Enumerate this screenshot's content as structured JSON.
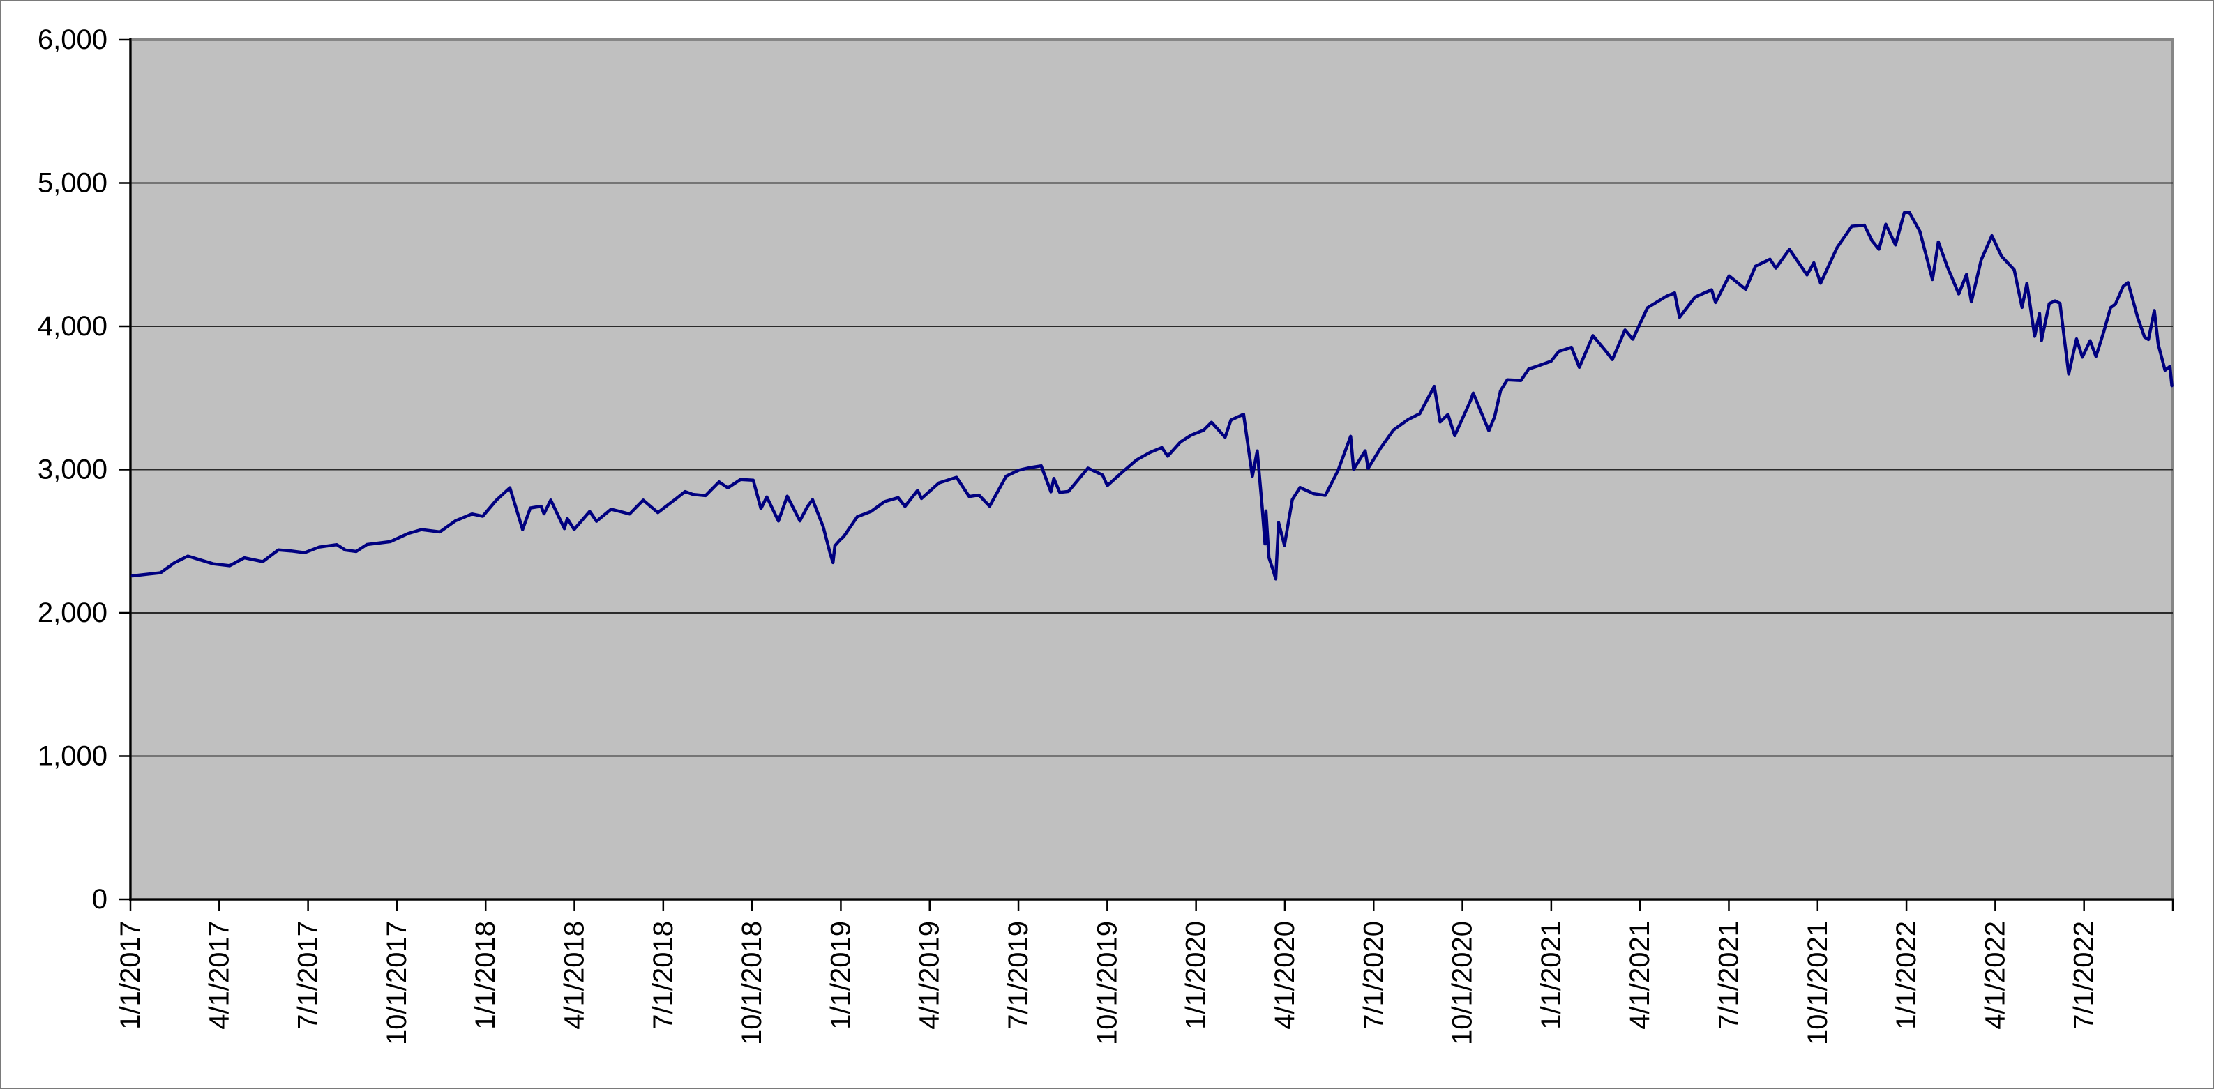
{
  "chart_data": {
    "type": "line",
    "title": "",
    "xlabel": "",
    "ylabel": "",
    "legend": "none",
    "grid": "horizontal",
    "ylim": [
      0,
      6000
    ],
    "y_tick_interval": 1000,
    "y_tick_labels": [
      "0",
      "1,000",
      "2,000",
      "3,000",
      "4,000",
      "5,000",
      "6,000"
    ],
    "x_domain": [
      "2017-01-01",
      "2022-10-01"
    ],
    "x_tick_labels": [
      "1/1/2017",
      "4/1/2017",
      "7/1/2017",
      "10/1/2017",
      "1/1/2018",
      "4/1/2018",
      "7/1/2018",
      "10/1/2018",
      "1/1/2019",
      "4/1/2019",
      "7/1/2019",
      "10/1/2019",
      "1/1/2020",
      "4/1/2020",
      "7/1/2020",
      "10/1/2020",
      "1/1/2021",
      "4/1/2021",
      "7/1/2021",
      "10/1/2021",
      "1/1/2022",
      "4/1/2022",
      "7/1/2022"
    ],
    "series": [
      {
        "color": "#000080",
        "points": [
          [
            "2017-01-03",
            2258
          ],
          [
            "2017-01-20",
            2271
          ],
          [
            "2017-02-01",
            2280
          ],
          [
            "2017-02-15",
            2349
          ],
          [
            "2017-03-01",
            2396
          ],
          [
            "2017-03-27",
            2342
          ],
          [
            "2017-04-13",
            2329
          ],
          [
            "2017-04-28",
            2384
          ],
          [
            "2017-05-17",
            2357
          ],
          [
            "2017-06-02",
            2439
          ],
          [
            "2017-06-15",
            2432
          ],
          [
            "2017-06-29",
            2420
          ],
          [
            "2017-07-14",
            2459
          ],
          [
            "2017-08-01",
            2476
          ],
          [
            "2017-08-10",
            2438
          ],
          [
            "2017-08-21",
            2428
          ],
          [
            "2017-09-01",
            2477
          ],
          [
            "2017-09-25",
            2497
          ],
          [
            "2017-10-13",
            2553
          ],
          [
            "2017-10-27",
            2581
          ],
          [
            "2017-11-15",
            2565
          ],
          [
            "2017-12-01",
            2642
          ],
          [
            "2017-12-18",
            2690
          ],
          [
            "2017-12-29",
            2674
          ],
          [
            "2018-01-12",
            2786
          ],
          [
            "2018-01-26",
            2873
          ],
          [
            "2018-02-05",
            2649
          ],
          [
            "2018-02-08",
            2581
          ],
          [
            "2018-02-16",
            2732
          ],
          [
            "2018-02-27",
            2744
          ],
          [
            "2018-03-02",
            2691
          ],
          [
            "2018-03-09",
            2787
          ],
          [
            "2018-03-23",
            2588
          ],
          [
            "2018-03-26",
            2658
          ],
          [
            "2018-04-02",
            2582
          ],
          [
            "2018-04-18",
            2708
          ],
          [
            "2018-04-25",
            2639
          ],
          [
            "2018-05-10",
            2723
          ],
          [
            "2018-05-29",
            2690
          ],
          [
            "2018-06-12",
            2787
          ],
          [
            "2018-06-27",
            2700
          ],
          [
            "2018-07-16",
            2798
          ],
          [
            "2018-07-25",
            2846
          ],
          [
            "2018-08-02",
            2827
          ],
          [
            "2018-08-15",
            2818
          ],
          [
            "2018-08-29",
            2914
          ],
          [
            "2018-09-07",
            2872
          ],
          [
            "2018-09-20",
            2931
          ],
          [
            "2018-10-03",
            2926
          ],
          [
            "2018-10-11",
            2728
          ],
          [
            "2018-10-17",
            2809
          ],
          [
            "2018-10-29",
            2641
          ],
          [
            "2018-11-07",
            2814
          ],
          [
            "2018-11-20",
            2642
          ],
          [
            "2018-11-28",
            2744
          ],
          [
            "2018-12-03",
            2790
          ],
          [
            "2018-12-14",
            2600
          ],
          [
            "2018-12-21",
            2417
          ],
          [
            "2018-12-24",
            2351
          ],
          [
            "2018-12-26",
            2468
          ],
          [
            "2018-12-31",
            2507
          ],
          [
            "2019-01-04",
            2532
          ],
          [
            "2019-01-18",
            2671
          ],
          [
            "2019-02-01",
            2707
          ],
          [
            "2019-02-15",
            2776
          ],
          [
            "2019-03-01",
            2804
          ],
          [
            "2019-03-08",
            2743
          ],
          [
            "2019-03-21",
            2855
          ],
          [
            "2019-03-25",
            2798
          ],
          [
            "2019-04-12",
            2907
          ],
          [
            "2019-04-30",
            2946
          ],
          [
            "2019-05-13",
            2812
          ],
          [
            "2019-05-23",
            2822
          ],
          [
            "2019-06-03",
            2744
          ],
          [
            "2019-06-20",
            2954
          ],
          [
            "2019-07-03",
            2996
          ],
          [
            "2019-07-15",
            3014
          ],
          [
            "2019-07-26",
            3026
          ],
          [
            "2019-08-05",
            2845
          ],
          [
            "2019-08-08",
            2938
          ],
          [
            "2019-08-14",
            2841
          ],
          [
            "2019-08-23",
            2847
          ],
          [
            "2019-09-12",
            3010
          ],
          [
            "2019-09-27",
            2962
          ],
          [
            "2019-10-02",
            2888
          ],
          [
            "2019-10-18",
            2986
          ],
          [
            "2019-11-01",
            3067
          ],
          [
            "2019-11-15",
            3120
          ],
          [
            "2019-11-27",
            3154
          ],
          [
            "2019-12-03",
            3093
          ],
          [
            "2019-12-16",
            3192
          ],
          [
            "2019-12-27",
            3240
          ],
          [
            "2020-01-09",
            3275
          ],
          [
            "2020-01-17",
            3330
          ],
          [
            "2020-01-31",
            3226
          ],
          [
            "2020-02-06",
            3346
          ],
          [
            "2020-02-19",
            3386
          ],
          [
            "2020-02-28",
            2954
          ],
          [
            "2020-03-04",
            3130
          ],
          [
            "2020-03-09",
            2746
          ],
          [
            "2020-03-12",
            2481
          ],
          [
            "2020-03-13",
            2711
          ],
          [
            "2020-03-16",
            2386
          ],
          [
            "2020-03-20",
            2305
          ],
          [
            "2020-03-23",
            2237
          ],
          [
            "2020-03-26",
            2630
          ],
          [
            "2020-04-01",
            2471
          ],
          [
            "2020-04-09",
            2790
          ],
          [
            "2020-04-17",
            2875
          ],
          [
            "2020-05-01",
            2831
          ],
          [
            "2020-05-13",
            2820
          ],
          [
            "2020-05-26",
            2992
          ],
          [
            "2020-06-08",
            3232
          ],
          [
            "2020-06-11",
            3002
          ],
          [
            "2020-06-23",
            3131
          ],
          [
            "2020-06-26",
            3009
          ],
          [
            "2020-07-09",
            3152
          ],
          [
            "2020-07-22",
            3276
          ],
          [
            "2020-08-06",
            3349
          ],
          [
            "2020-08-18",
            3390
          ],
          [
            "2020-09-02",
            3581
          ],
          [
            "2020-09-08",
            3332
          ],
          [
            "2020-09-16",
            3385
          ],
          [
            "2020-09-23",
            3237
          ],
          [
            "2020-10-09",
            3477
          ],
          [
            "2020-10-12",
            3534
          ],
          [
            "2020-10-28",
            3271
          ],
          [
            "2020-11-03",
            3369
          ],
          [
            "2020-11-09",
            3550
          ],
          [
            "2020-11-16",
            3627
          ],
          [
            "2020-11-30",
            3622
          ],
          [
            "2020-12-08",
            3702
          ],
          [
            "2020-12-17",
            3722
          ],
          [
            "2020-12-31",
            3756
          ],
          [
            "2021-01-08",
            3825
          ],
          [
            "2021-01-21",
            3853
          ],
          [
            "2021-01-29",
            3714
          ],
          [
            "2021-02-12",
            3935
          ],
          [
            "2021-02-25",
            3829
          ],
          [
            "2021-03-04",
            3768
          ],
          [
            "2021-03-17",
            3974
          ],
          [
            "2021-03-25",
            3910
          ],
          [
            "2021-04-09",
            4129
          ],
          [
            "2021-04-29",
            4211
          ],
          [
            "2021-05-07",
            4233
          ],
          [
            "2021-05-12",
            4063
          ],
          [
            "2021-05-28",
            4204
          ],
          [
            "2021-06-14",
            4255
          ],
          [
            "2021-06-18",
            4166
          ],
          [
            "2021-07-02",
            4352
          ],
          [
            "2021-07-19",
            4258
          ],
          [
            "2021-07-29",
            4419
          ],
          [
            "2021-08-13",
            4468
          ],
          [
            "2021-08-19",
            4406
          ],
          [
            "2021-09-02",
            4537
          ],
          [
            "2021-09-20",
            4358
          ],
          [
            "2021-09-27",
            4443
          ],
          [
            "2021-10-04",
            4300
          ],
          [
            "2021-10-21",
            4550
          ],
          [
            "2021-11-05",
            4698
          ],
          [
            "2021-11-18",
            4705
          ],
          [
            "2021-11-26",
            4595
          ],
          [
            "2021-12-03",
            4538
          ],
          [
            "2021-12-10",
            4712
          ],
          [
            "2021-12-20",
            4568
          ],
          [
            "2021-12-29",
            4793
          ],
          [
            "2022-01-03",
            4797
          ],
          [
            "2022-01-14",
            4663
          ],
          [
            "2022-01-27",
            4326
          ],
          [
            "2022-02-02",
            4589
          ],
          [
            "2022-02-11",
            4419
          ],
          [
            "2022-02-23",
            4226
          ],
          [
            "2022-03-03",
            4363
          ],
          [
            "2022-03-08",
            4171
          ],
          [
            "2022-03-18",
            4463
          ],
          [
            "2022-03-29",
            4632
          ],
          [
            "2022-04-08",
            4488
          ],
          [
            "2022-04-21",
            4394
          ],
          [
            "2022-04-29",
            4132
          ],
          [
            "2022-05-04",
            4300
          ],
          [
            "2022-05-12",
            3930
          ],
          [
            "2022-05-17",
            4089
          ],
          [
            "2022-05-19",
            3901
          ],
          [
            "2022-05-27",
            4158
          ],
          [
            "2022-06-02",
            4177
          ],
          [
            "2022-06-07",
            4160
          ],
          [
            "2022-06-16",
            3667
          ],
          [
            "2022-06-24",
            3912
          ],
          [
            "2022-06-30",
            3785
          ],
          [
            "2022-07-08",
            3899
          ],
          [
            "2022-07-14",
            3790
          ],
          [
            "2022-07-22",
            3962
          ],
          [
            "2022-07-29",
            4130
          ],
          [
            "2022-08-03",
            4155
          ],
          [
            "2022-08-11",
            4280
          ],
          [
            "2022-08-16",
            4305
          ],
          [
            "2022-08-26",
            4058
          ],
          [
            "2022-09-02",
            3924
          ],
          [
            "2022-09-06",
            3908
          ],
          [
            "2022-09-12",
            4110
          ],
          [
            "2022-09-16",
            3873
          ],
          [
            "2022-09-23",
            3693
          ],
          [
            "2022-09-28",
            3719
          ],
          [
            "2022-09-30",
            3586
          ]
        ]
      }
    ]
  },
  "colors": {
    "canvas_bg": "#ffffff",
    "outer_border": "#7a7a7a",
    "plot_bg": "#c0c0c0",
    "plot_border": "#868686",
    "gridline": "#2a2a2a",
    "axis": "#000000",
    "tick": "#000000",
    "label_text": "#000000",
    "line": "#000080"
  }
}
